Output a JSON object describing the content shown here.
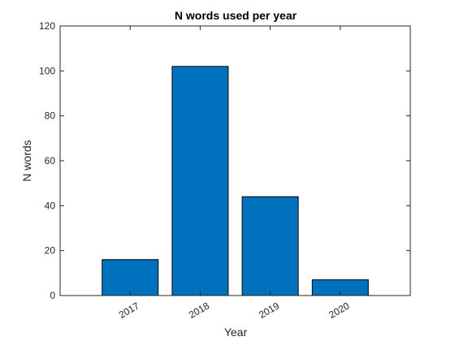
{
  "chart_data": {
    "type": "bar",
    "title": "N words used per year",
    "xlabel": "Year",
    "ylabel": "N words",
    "categories": [
      "2017",
      "2018",
      "2019",
      "2020"
    ],
    "values": [
      16,
      102,
      44,
      7
    ],
    "ylim": [
      0,
      120
    ],
    "yticks": [
      "0",
      "20",
      "40",
      "60",
      "80",
      "100",
      "120"
    ],
    "bar_color": "#0072BD",
    "bar_edge_color": "#000000",
    "grid": false,
    "legend": "none"
  }
}
